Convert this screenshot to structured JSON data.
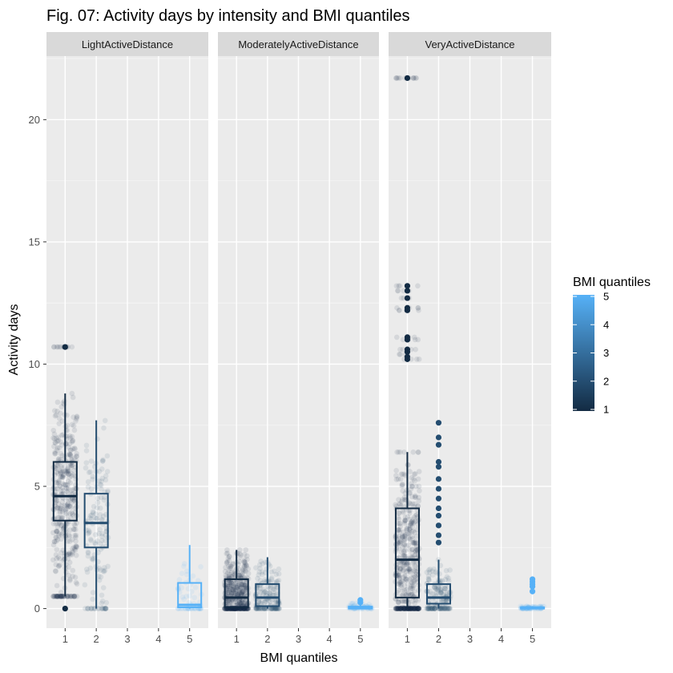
{
  "chart_data": {
    "type": "box",
    "title": "Fig. 07: Activity days by intensity and BMI quantiles",
    "xlabel": "BMI quantiles",
    "ylabel": "Activity days",
    "x_categories": [
      "1",
      "2",
      "3",
      "4",
      "5"
    ],
    "y_ticks": [
      "0",
      "5",
      "10",
      "15",
      "20"
    ],
    "ylim": [
      -0.8,
      22.6
    ],
    "grid": true,
    "legend": {
      "title": "BMI quantiles",
      "position": "right",
      "scale": "continuous",
      "labels": [
        "5",
        "4",
        "3",
        "2",
        "1"
      ],
      "low_color": "#132b43",
      "high_color": "#56b1f7"
    },
    "panels": [
      {
        "name": "LightActiveDistance",
        "boxes": [
          {
            "quantile": 1,
            "min": 0.5,
            "q1": 3.6,
            "median": 4.6,
            "q3": 6.0,
            "max": 8.8,
            "outliers": [
              0.0,
              10.7
            ],
            "jitter": {
              "n": 420,
              "min": 0.5,
              "max": 8.8,
              "center": 4.8,
              "spread": 1.8,
              "extra": [
                10.7,
                10.7,
                10.7
              ]
            }
          },
          {
            "quantile": 2,
            "min": 0.0,
            "q1": 2.5,
            "median": 3.5,
            "q3": 4.7,
            "max": 7.7,
            "outliers": [],
            "jitter": {
              "n": 150,
              "min": 0.0,
              "max": 7.7,
              "center": 3.6,
              "spread": 1.6,
              "extra": []
            }
          },
          {
            "quantile": 5,
            "min": 0.0,
            "q1": 0.05,
            "median": 0.15,
            "q3": 1.05,
            "max": 2.6,
            "outliers": [],
            "jitter": {
              "n": 60,
              "min": 0.0,
              "max": 2.6,
              "center": 0.3,
              "spread": 0.8,
              "extra": []
            }
          }
        ]
      },
      {
        "name": "ModeratelyActiveDistance",
        "boxes": [
          {
            "quantile": 1,
            "min": 0.0,
            "q1": 0.05,
            "median": 0.45,
            "q3": 1.2,
            "max": 2.4,
            "outliers": [],
            "jitter": {
              "n": 480,
              "min": 0.0,
              "max": 2.4,
              "center": 0.6,
              "spread": 0.8,
              "extra": []
            }
          },
          {
            "quantile": 2,
            "min": 0.0,
            "q1": 0.1,
            "median": 0.45,
            "q3": 1.0,
            "max": 2.1,
            "outliers": [],
            "jitter": {
              "n": 180,
              "min": 0.0,
              "max": 2.1,
              "center": 0.5,
              "spread": 0.6,
              "extra": []
            }
          },
          {
            "quantile": 5,
            "min": 0.0,
            "q1": 0.0,
            "median": 0.02,
            "q3": 0.08,
            "max": 0.15,
            "outliers": [
              0.25,
              0.35
            ],
            "jitter": {
              "n": 60,
              "min": 0.0,
              "max": 0.35,
              "center": 0.05,
              "spread": 0.1,
              "extra": []
            }
          }
        ]
      },
      {
        "name": "VeryActiveDistance",
        "boxes": [
          {
            "quantile": 1,
            "min": 0.0,
            "q1": 0.45,
            "median": 2.0,
            "q3": 4.1,
            "max": 6.4,
            "outliers": [
              10.2,
              10.3,
              10.5,
              10.6,
              11.0,
              11.1,
              12.2,
              12.3,
              12.7,
              13.0,
              13.2,
              21.7
            ],
            "jitter": {
              "n": 500,
              "min": 0.0,
              "max": 6.4,
              "center": 2.0,
              "spread": 2.0,
              "extra": [
                5.5,
                5.3,
                5.0,
                10.2,
                10.4,
                10.6,
                11.0,
                11.1,
                12.2,
                12.3,
                12.7,
                13.0,
                13.2,
                21.7,
                21.7,
                21.7
              ]
            }
          },
          {
            "quantile": 2,
            "min": 0.0,
            "q1": 0.2,
            "median": 0.45,
            "q3": 1.0,
            "max": 2.0,
            "outliers": [
              2.7,
              3.0,
              3.4,
              3.8,
              4.1,
              4.5,
              4.9,
              5.3,
              5.8,
              6.0,
              6.7,
              7.0,
              7.6
            ],
            "jitter": {
              "n": 170,
              "min": 0.0,
              "max": 2.0,
              "center": 0.5,
              "spread": 0.6,
              "extra": []
            }
          },
          {
            "quantile": 5,
            "min": 0.0,
            "q1": 0.0,
            "median": 0.02,
            "q3": 0.05,
            "max": 0.1,
            "outliers": [
              0.7,
              0.9,
              1.0,
              1.1,
              1.2
            ],
            "jitter": {
              "n": 70,
              "min": 0.0,
              "max": 0.1,
              "center": 0.03,
              "spread": 0.05,
              "extra": []
            }
          }
        ]
      }
    ]
  }
}
